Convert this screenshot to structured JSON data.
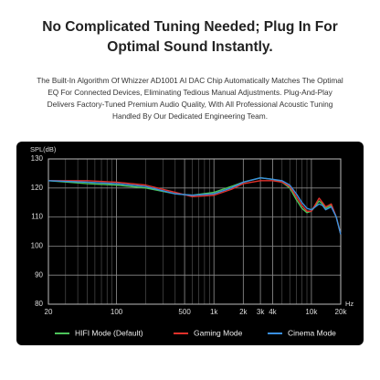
{
  "header": {
    "title_lines": [
      "No Complicated Tuning Needed; Plug In For",
      "Optimal Sound Instantly."
    ],
    "description_lines": [
      "The Built-In Algorithm Of Whizzer AD1001 AI DAC Chip Automatically Matches The Optimal",
      "EQ For Connected Devices, Eliminating Tedious Manual Adjustments. Plug-And-Play",
      "Delivers Factory-Tuned Premium Audio Quality, With All Professional Acoustic Tuning",
      "Handled By Our Dedicated Engineering Team."
    ]
  },
  "chart_data": {
    "type": "line",
    "y_label": "SPL(dB)",
    "x_label": "Hz",
    "log_x": true,
    "grid": true,
    "xlim": [
      20,
      20000
    ],
    "ylim": [
      80,
      130
    ],
    "xticks": [
      20,
      100,
      500,
      {
        "value": 1000,
        "label": "1k"
      },
      {
        "value": 2000,
        "label": "2k"
      },
      {
        "value": 3000,
        "label": "3k"
      },
      {
        "value": 4000,
        "label": "4k"
      },
      {
        "value": 10000,
        "label": "10k"
      },
      {
        "value": 20000,
        "label": "20k"
      }
    ],
    "yticks": [
      80,
      90,
      100,
      110,
      120,
      130
    ],
    "x": [
      20,
      50,
      100,
      200,
      400,
      600,
      1000,
      1500,
      2000,
      3000,
      4000,
      5000,
      6000,
      7000,
      8000,
      9000,
      10000,
      12000,
      13000,
      14000,
      16000,
      18000,
      20000
    ],
    "series": [
      {
        "name": "HIFI Mode (Default)",
        "color": "#4cc45a",
        "values": [
          122.5,
          121.5,
          121,
          120,
          118,
          117.5,
          118.5,
          120.5,
          122,
          123.5,
          123,
          122,
          120,
          116,
          113,
          111.5,
          112,
          115.5,
          114.5,
          113,
          114,
          110,
          104
        ]
      },
      {
        "name": "Gaming Mode",
        "color": "#e0312b",
        "values": [
          122.5,
          122.5,
          122,
          121,
          118.5,
          117,
          117.5,
          119.5,
          121.5,
          122.5,
          122.5,
          122,
          120.5,
          117,
          114,
          112,
          112,
          116.5,
          115,
          113.5,
          114.5,
          110,
          104
        ]
      },
      {
        "name": "Cinema Mode",
        "color": "#3a8fe0",
        "values": [
          122.5,
          122,
          121.5,
          120.5,
          118,
          117.5,
          118,
          120,
          122,
          123.5,
          123,
          122.5,
          121,
          118,
          115,
          113,
          112.5,
          114.5,
          114,
          112.5,
          113.5,
          110,
          104
        ]
      }
    ]
  }
}
